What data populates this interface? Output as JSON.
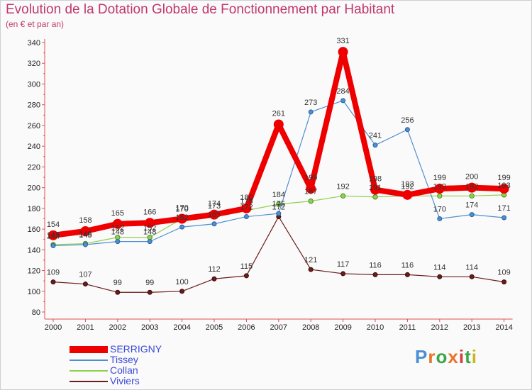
{
  "title": "Evolution de la Dotation Globale de Fonctionnement par Habitant",
  "subtitle": "(en € et par an)",
  "logo_text": "Proxiti",
  "logo_colors": [
    "#4a8fd4",
    "#e8742a",
    "#3aa64a",
    "#e8742a",
    "#d93a3a",
    "#3aa64a",
    "#c9b81c"
  ],
  "chart_data": {
    "type": "line",
    "title": "Evolution de la Dotation Globale de Fonctionnement par Habitant",
    "subtitle": "(en € et par an)",
    "xlabel": "",
    "ylabel": "",
    "ylim": [
      80,
      340
    ],
    "yticks": [
      80,
      100,
      120,
      140,
      160,
      180,
      200,
      220,
      240,
      260,
      280,
      300,
      320,
      340
    ],
    "grid": false,
    "legend_position": "bottom-left",
    "categories": [
      "2000",
      "2001",
      "2002",
      "2003",
      "2004",
      "2005",
      "2006",
      "2007",
      "2008",
      "2009",
      "2010",
      "2011",
      "2012",
      "2013",
      "2014"
    ],
    "series": [
      {
        "name": "SERRIGNY",
        "color": "#ee0000",
        "values": [
          154,
          158,
          165,
          166,
          170,
          174,
          180,
          261,
          199,
          331,
          198,
          193,
          199,
          200,
          199
        ]
      },
      {
        "name": "Tissey",
        "color": "#4f8fd0",
        "values": [
          144,
          145,
          148,
          148,
          162,
          165,
          172,
          175,
          273,
          284,
          241,
          256,
          170,
          174,
          171
        ]
      },
      {
        "name": "Collan",
        "color": "#8fd14f",
        "values": [
          145,
          146,
          152,
          152,
          170,
          173,
          178,
          184,
          187,
          192,
          191,
          192,
          192,
          192,
          193
        ]
      },
      {
        "name": "Viviers",
        "color": "#6b1c1c",
        "values": [
          109,
          107,
          99,
          99,
          100,
          112,
          115,
          172,
          121,
          117,
          116,
          116,
          114,
          114,
          109
        ]
      }
    ]
  }
}
